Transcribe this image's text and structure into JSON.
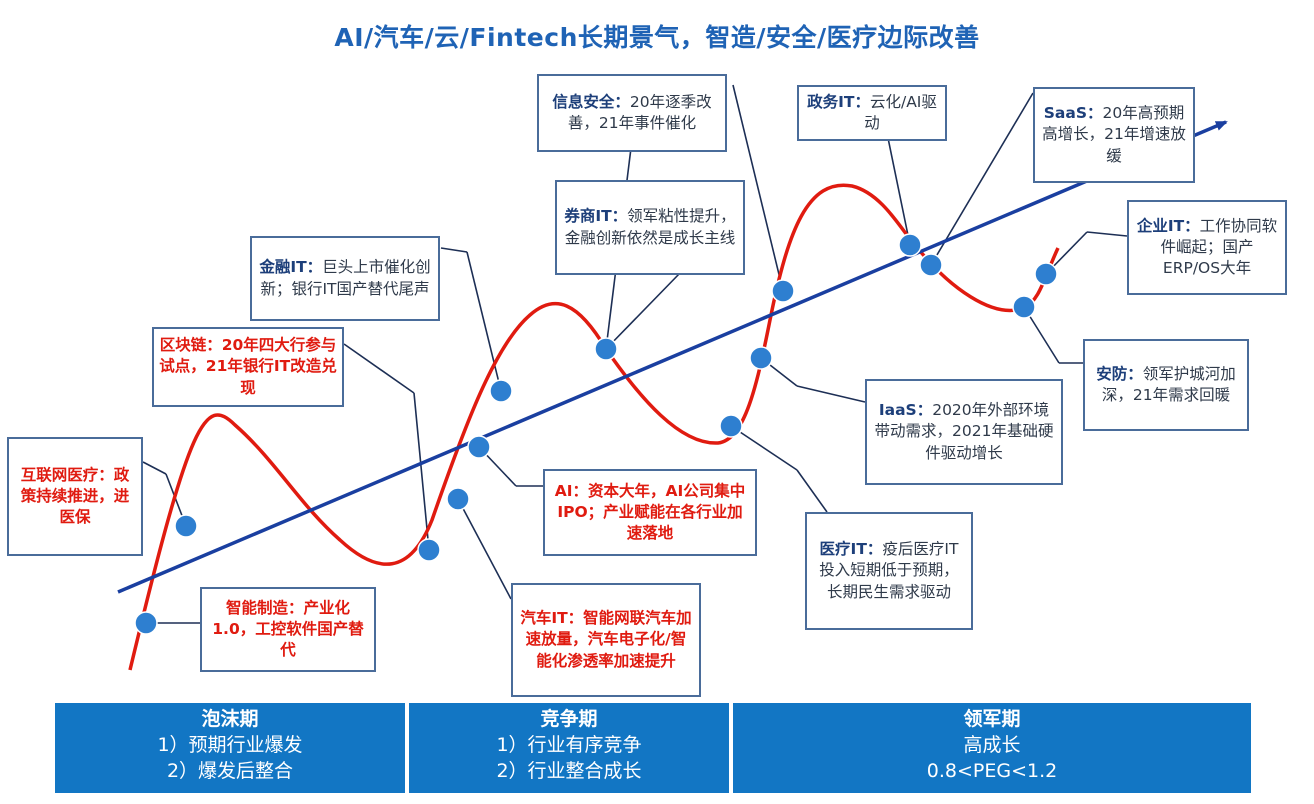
{
  "title": "AI/汽车/云/Fintech长期景气，智造/安全/医疗边际改善",
  "colors": {
    "title": "#1f63b5",
    "curve": "#e01b10",
    "trend": "#1a3fa0",
    "dot": "#2e7fd0",
    "phase_bg": "#1276c4",
    "highlight_text": "#e01b10"
  },
  "callouts": {
    "infosec": {
      "lead": "信息安全：",
      "text": "20年逐季改善，21年事件催化"
    },
    "govit": {
      "lead": "政务IT：",
      "text": "云化/AI驱动"
    },
    "saas": {
      "lead": "SaaS：",
      "text": "20年高预期高增长，21年增速放缓"
    },
    "broker": {
      "lead": "券商IT：",
      "text": "领军粘性提升，金融创新依然是成长主线"
    },
    "finit": {
      "lead": "金融IT：",
      "text": "巨头上市催化创新；银行IT国产替代尾声"
    },
    "entit": {
      "lead": "企业IT：",
      "text": "工作协同软件崛起；国产ERP/OS大年"
    },
    "blockchain": {
      "lead": "区块链：",
      "text": "20年四大行参与试点，21年银行IT改造兑现"
    },
    "security": {
      "lead": "安防：",
      "text": "领军护城河加深，21年需求回暖"
    },
    "iaas": {
      "lead": "IaaS：",
      "text": "2020年外部环境带动需求，2021年基础硬件驱动增长"
    },
    "healthnet": {
      "lead": "互联网医疗：",
      "text": "政策持续推进，进医保"
    },
    "ai": {
      "lead": "AI：",
      "text": "资本大年，AI公司集中IPO；产业赋能在各行业加速落地"
    },
    "medit": {
      "lead": "医疗IT：",
      "text": "疫后医疗IT投入短期低于预期，长期民生需求驱动"
    },
    "smartmfg": {
      "lead": "智能制造：",
      "text": "产业化1.0，工控软件国产替代"
    },
    "autoit": {
      "lead": "汽车IT：",
      "text": "智能网联汽车加速放量，汽车电子化/智能化渗透率加速提升"
    }
  },
  "phases": [
    {
      "title": "泡沫期",
      "line1": "1）预期行业爆发",
      "line2": "2）爆发后整合"
    },
    {
      "title": "竞争期",
      "line1": "1）行业有序竞争",
      "line2": "2）行业整合成长"
    },
    {
      "title": "领军期",
      "line1": "高成长",
      "line2": "0.8<PEG<1.2"
    }
  ]
}
